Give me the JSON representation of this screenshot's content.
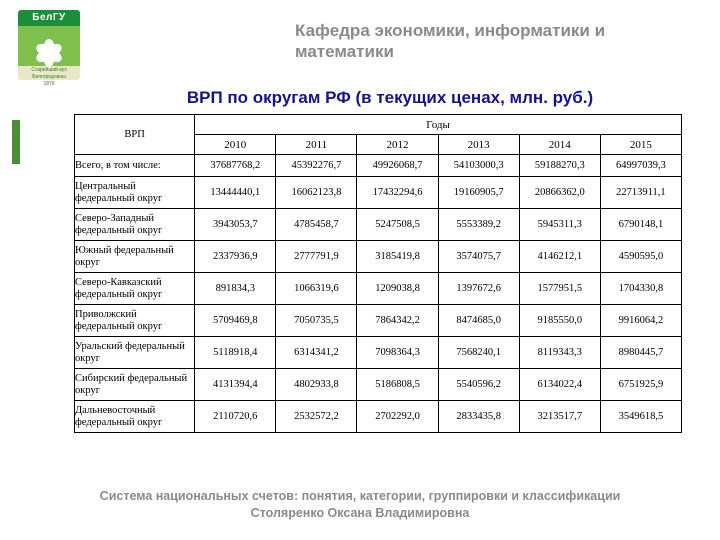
{
  "logo": {
    "text_top": "БелГУ",
    "text_bottom_line1": "Старейший вуз Белгородчины",
    "text_bottom_line2": "1876",
    "colors": {
      "top": "#1b8f3a",
      "mid": "#7fbf4d",
      "bot": "#e8e8c8",
      "petal": "#ffffff"
    }
  },
  "department": "Кафедра экономики, информатики и математики",
  "title": "ВРП по округам РФ (в текущих ценах, млн. руб.)",
  "table": {
    "row_header": "ВРП",
    "years_header": "Годы",
    "years": [
      "2010",
      "2011",
      "2012",
      "2013",
      "2014",
      "2015"
    ],
    "rows": [
      {
        "label": "Всего, в том числе:",
        "vals": [
          "37687768,2",
          "45392276,7",
          "49926068,7",
          "54103000,3",
          "59188270,3",
          "64997039,3"
        ]
      },
      {
        "label": "Центральный федеральный округ",
        "vals": [
          "13444440,1",
          "16062123,8",
          "17432294,6",
          "19160905,7",
          "20866362,0",
          "22713911,1"
        ]
      },
      {
        "label": "Северо-Западный федеральный округ",
        "vals": [
          "3943053,7",
          "4785458,7",
          "5247508,5",
          "5553389,2",
          "5945311,3",
          "6790148,1"
        ]
      },
      {
        "label": "Южный федеральный округ",
        "vals": [
          "2337936,9",
          "2777791,9",
          "3185419,8",
          "3574075,7",
          "4146212,1",
          "4590595,0"
        ]
      },
      {
        "label": "Северо-Кавказский федеральный округ",
        "vals": [
          "891834,3",
          "1066319,6",
          "1209038,8",
          "1397672,6",
          "1577951,5",
          "1704330,8"
        ]
      },
      {
        "label": "Приволжский федеральный округ",
        "vals": [
          "5709469,8",
          "7050735,5",
          "7864342,2",
          "8474685,0",
          "9185550,0",
          "9916064,2"
        ]
      },
      {
        "label": "Уральский федеральный округ",
        "vals": [
          "5118918,4",
          "6314341,2",
          "7098364,3",
          "7568240,1",
          "8119343,3",
          "8980445,7"
        ]
      },
      {
        "label": "Сибирский федеральный округ",
        "vals": [
          "4131394,4",
          "4802933,8",
          "5186808,5",
          "5540596,2",
          "6134022,4",
          "6751925,9"
        ]
      },
      {
        "label": "Дальневосточный федеральный округ",
        "vals": [
          "2110720,6",
          "2532572,2",
          "2702292,0",
          "2833435,8",
          "3213517,7",
          "3549618,5"
        ]
      }
    ],
    "border_color": "#000000",
    "font_family": "Times New Roman",
    "header_fontsize": 11,
    "cell_fontsize": 10.5
  },
  "footer": {
    "line1": "Система национальных счетов: понятия, категории, группировки и классификации",
    "line2": "Столяренко Оксана Владимировна"
  },
  "colors": {
    "title": "#14148a",
    "dept": "#8a8a88",
    "footer": "#8a8a88",
    "stripe": "#4a8f35",
    "background": "#ffffff"
  }
}
